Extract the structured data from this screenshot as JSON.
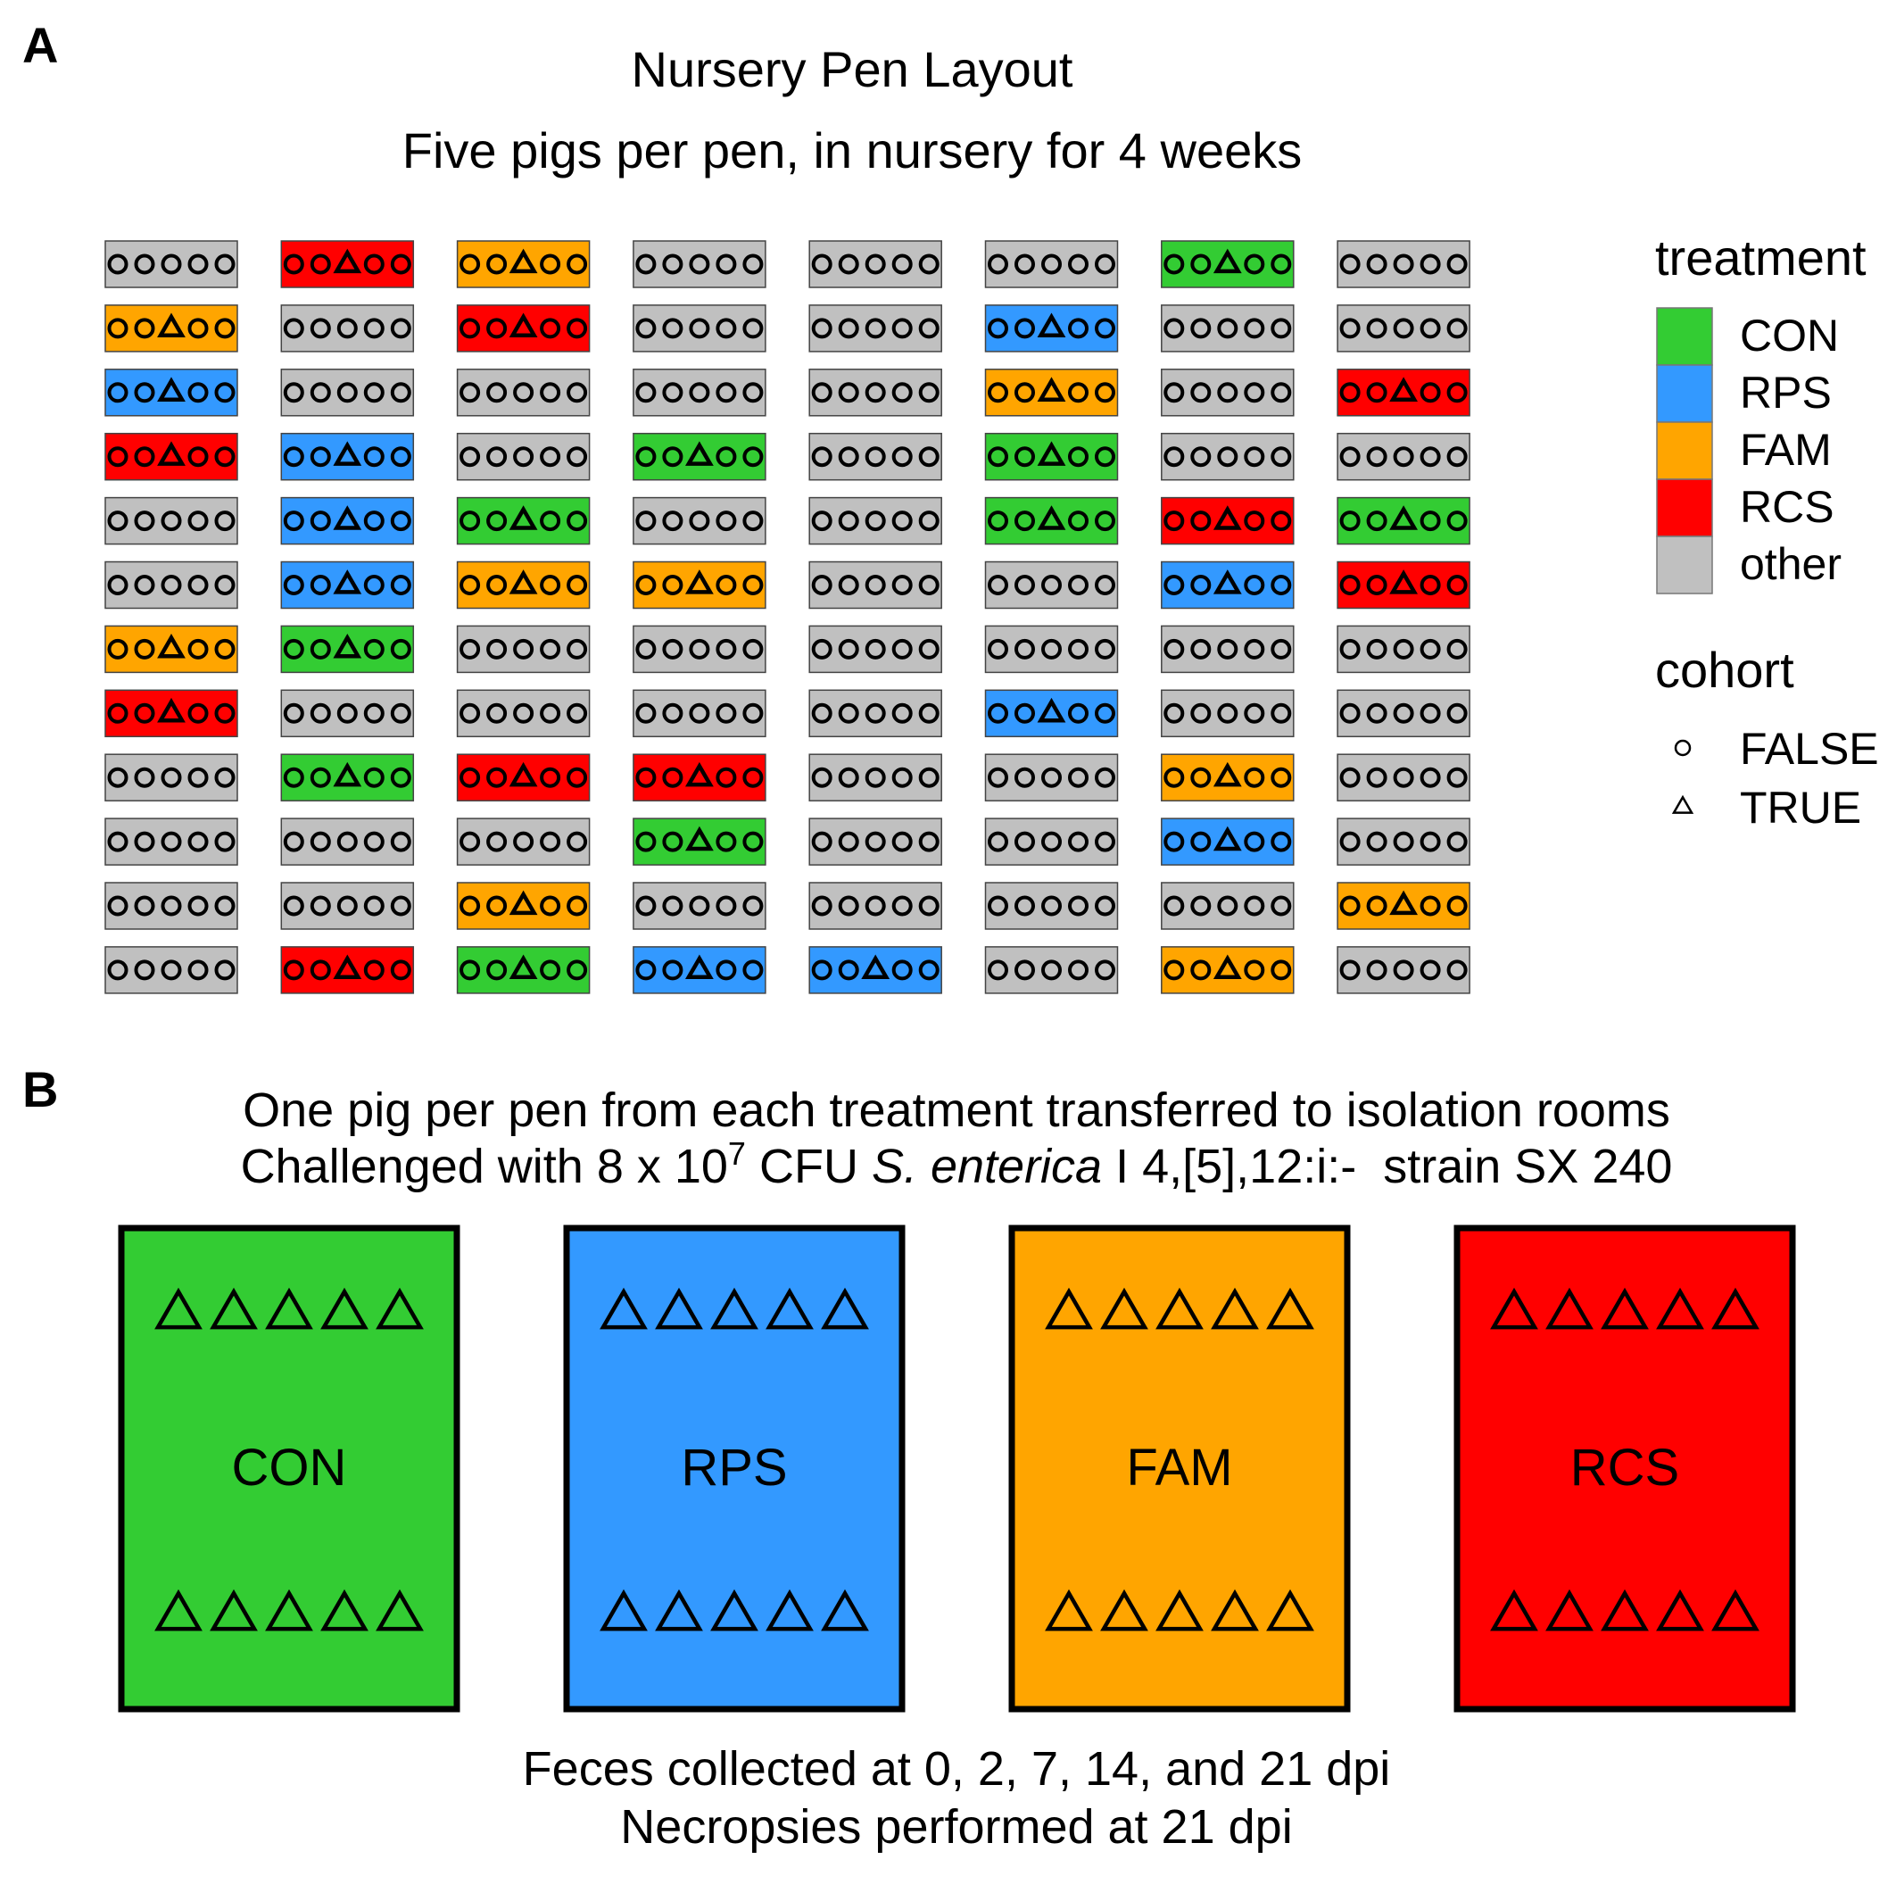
{
  "panel_a": {
    "label": "A",
    "title": "Nursery Pen Layout",
    "subtitle": "Five pigs per pen, in nursery for 4 weeks",
    "pen_grid": [
      [
        "other",
        "RCS",
        "FAM",
        "other",
        "other",
        "other",
        "CON",
        "other"
      ],
      [
        "FAM",
        "other",
        "RCS",
        "other",
        "other",
        "RPS",
        "other",
        "other"
      ],
      [
        "RPS",
        "other",
        "other",
        "other",
        "other",
        "FAM",
        "other",
        "RCS"
      ],
      [
        "RCS",
        "RPS",
        "other",
        "CON",
        "other",
        "CON",
        "other",
        "other"
      ],
      [
        "other",
        "RPS",
        "CON",
        "other",
        "other",
        "CON",
        "RCS",
        "CON"
      ],
      [
        "other",
        "RPS",
        "FAM",
        "FAM",
        "other",
        "other",
        "RPS",
        "RCS"
      ],
      [
        "FAM",
        "CON",
        "other",
        "other",
        "other",
        "other",
        "other",
        "other"
      ],
      [
        "RCS",
        "other",
        "other",
        "other",
        "other",
        "RPS",
        "other",
        "other"
      ],
      [
        "other",
        "CON",
        "RCS",
        "RCS",
        "other",
        "other",
        "FAM",
        "other"
      ],
      [
        "other",
        "other",
        "other",
        "CON",
        "other",
        "other",
        "RPS",
        "other"
      ],
      [
        "other",
        "other",
        "FAM",
        "other",
        "other",
        "other",
        "other",
        "FAM"
      ],
      [
        "other",
        "RCS",
        "CON",
        "RPS",
        "RPS",
        "other",
        "FAM",
        "other"
      ]
    ]
  },
  "legend": {
    "treatment_title": "treatment",
    "treatments": [
      {
        "label": "CON",
        "color": "#33CC33"
      },
      {
        "label": "RPS",
        "color": "#3399FF"
      },
      {
        "label": "FAM",
        "color": "#FFA500"
      },
      {
        "label": "RCS",
        "color": "#FF0000"
      },
      {
        "label": "other",
        "color": "#C0C0C0"
      }
    ],
    "cohort_title": "cohort",
    "cohorts": [
      {
        "label": "FALSE",
        "shape": "circle"
      },
      {
        "label": "TRUE",
        "shape": "triangle"
      }
    ]
  },
  "panel_b": {
    "label": "B",
    "line1": "One pig per pen from each treatment transferred to isolation rooms",
    "line2_prefix": "Challenged with 8 x 10",
    "line2_exponent": "7",
    "line2_mid": " CFU ",
    "line2_italic": "S. enterica",
    "line2_suffix": " I 4,[5],12:i:-  strain SX 240",
    "rooms": [
      {
        "label": "CON",
        "color": "#33CC33"
      },
      {
        "label": "RPS",
        "color": "#3399FF"
      },
      {
        "label": "FAM",
        "color": "#FFA500"
      },
      {
        "label": "RCS",
        "color": "#FF0000"
      }
    ],
    "pigs_per_row": 5,
    "footer1": "Feces collected at 0, 2, 7, 14, and 21 dpi",
    "footer2": "Necropsies performed at 21 dpi"
  }
}
